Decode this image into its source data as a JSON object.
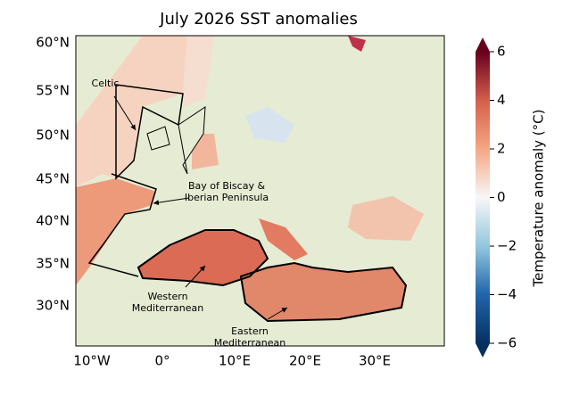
{
  "map": {
    "title": "July 2026 SST anomalies",
    "lat_ticks": [
      "60°N",
      "55°N",
      "50°N",
      "45°N",
      "40°N",
      "35°N",
      "30°N"
    ],
    "lon_ticks": [
      "10°W",
      "0°",
      "10°E",
      "20°E",
      "30°E"
    ],
    "colorbar": {
      "label": "Temperature anomaly (°C)",
      "lim": [
        -6,
        6
      ],
      "ticks": [
        {
          "value": -6,
          "label": "−6"
        },
        {
          "value": -4,
          "label": "−4"
        },
        {
          "value": -2,
          "label": "−2"
        },
        0,
        2,
        4,
        6
      ]
    },
    "annotations": [
      {
        "lines": [
          "Celtic"
        ]
      },
      {
        "lines": [
          "Bay of Biscay &",
          "Iberian Peninsula"
        ]
      },
      {
        "lines": [
          "Western",
          "Mediterranean"
        ]
      },
      {
        "lines": [
          "Eastern",
          "Mediterranean"
        ]
      }
    ]
  }
}
